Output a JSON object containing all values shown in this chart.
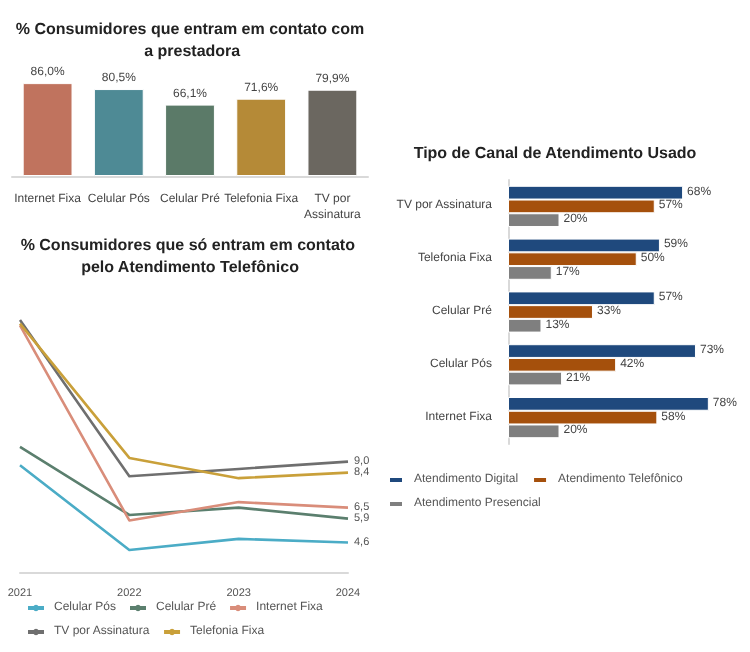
{
  "chart_data": [
    {
      "type": "bar",
      "title": "% Consumidores que entram em contato com a prestadora",
      "categories": [
        "Internet Fixa",
        "Celular Pós",
        "Celular Pré",
        "Telefonia Fixa",
        "TV por Assinatura"
      ],
      "values": [
        86.0,
        80.5,
        66.1,
        71.6,
        79.9
      ],
      "colors": [
        "#c0735e",
        "#4e8a95",
        "#5b7a68",
        "#b58a37",
        "#6b6760"
      ],
      "value_labels": [
        "86,0%",
        "80,5%",
        "66,1%",
        "71,6%",
        "79,9%"
      ]
    },
    {
      "type": "bar",
      "orientation": "horizontal",
      "title": "Tipo de Canal de Atendimento Usado",
      "categories": [
        "TV por Assinatura",
        "Telefonia Fixa",
        "Celular Pré",
        "Celular Pós",
        "Internet Fixa"
      ],
      "legend": "bottom",
      "series": [
        {
          "name": "Atendimento Digital",
          "color": "#1f497d",
          "values": [
            68,
            59,
            57,
            73,
            78
          ],
          "value_labels": [
            "68%",
            "59%",
            "57%",
            "73%",
            "78%"
          ]
        },
        {
          "name": "Atendimento Telefônico",
          "color": "#a5500c",
          "values": [
            57,
            50,
            33,
            42,
            58
          ],
          "value_labels": [
            "57%",
            "50%",
            "33%",
            "42%",
            "58%"
          ]
        },
        {
          "name": "Atendimento Presencial",
          "color": "#7f7f7f",
          "values": [
            20,
            17,
            13,
            21,
            20
          ],
          "value_labels": [
            "20%",
            "17%",
            "13%",
            "21%",
            "20%"
          ]
        }
      ]
    },
    {
      "type": "line",
      "title": "% Consumidores que só entram em contato pelo Atendimento Telefônico",
      "categories": [
        "2021",
        "2022",
        "2023",
        "2024"
      ],
      "legend": "bottom",
      "marker": "none",
      "line_style": "solid",
      "series": [
        {
          "name": "Celular Pós",
          "color": "#4bacc6",
          "values": [
            8.8,
            4.2,
            4.8,
            4.6
          ],
          "value_labels": [
            null,
            null,
            null,
            "4,6"
          ]
        },
        {
          "name": "Celular Pré",
          "color": "#5b7f6e",
          "values": [
            9.8,
            6.1,
            6.5,
            5.9
          ],
          "value_labels": [
            null,
            null,
            null,
            "5,9"
          ]
        },
        {
          "name": "Internet Fixa",
          "color": "#d98d7a",
          "values": [
            16.4,
            5.8,
            6.8,
            6.5
          ],
          "value_labels": [
            null,
            null,
            null,
            "6,5"
          ]
        },
        {
          "name": "TV por Assinatura",
          "color": "#6f6f6f",
          "values": [
            16.7,
            8.2,
            8.6,
            9.0
          ],
          "value_labels": [
            null,
            null,
            null,
            "9,0"
          ]
        },
        {
          "name": "Telefonia Fixa",
          "color": "#c9a03a",
          "values": [
            16.5,
            9.2,
            8.1,
            8.4
          ],
          "value_labels": [
            null,
            null,
            null,
            "8,4"
          ]
        }
      ]
    }
  ]
}
